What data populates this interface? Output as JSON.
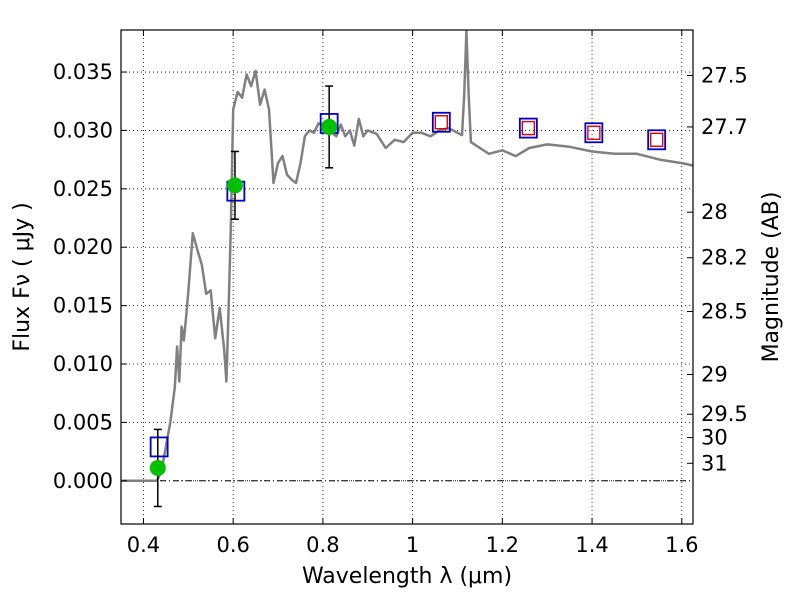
{
  "chart_data": {
    "type": "scatter",
    "xlabel": "Wavelength  λ (μm)",
    "ylabel": "Flux  Fν  ( μJy )",
    "y2label": "Magnitude (AB)",
    "xlim": [
      0.35,
      1.625
    ],
    "ylim": [
      -0.0037,
      0.0386
    ],
    "grid": true,
    "x_ticks": [
      {
        "value": 0.4,
        "label": "0.4"
      },
      {
        "value": 0.6,
        "label": "0.6"
      },
      {
        "value": 0.8,
        "label": "0.8"
      },
      {
        "value": 1.0,
        "label": "1"
      },
      {
        "value": 1.2,
        "label": "1.2"
      },
      {
        "value": 1.4,
        "label": "1.4"
      },
      {
        "value": 1.6,
        "label": "1.6"
      }
    ],
    "y_ticks": [
      {
        "value": 0.0,
        "label": "0.000"
      },
      {
        "value": 0.005,
        "label": "0.005"
      },
      {
        "value": 0.01,
        "label": "0.010"
      },
      {
        "value": 0.015,
        "label": "0.015"
      },
      {
        "value": 0.02,
        "label": "0.020"
      },
      {
        "value": 0.025,
        "label": "0.025"
      },
      {
        "value": 0.03,
        "label": "0.030"
      },
      {
        "value": 0.035,
        "label": "0.035"
      }
    ],
    "y2_ticks": [
      {
        "flux": 0.0347,
        "label": "27.5"
      },
      {
        "flux": 0.0303,
        "label": "27.7"
      },
      {
        "flux": 0.023,
        "label": "28"
      },
      {
        "flux": 0.0191,
        "label": "28.2"
      },
      {
        "flux": 0.0145,
        "label": "28.5"
      },
      {
        "flux": 0.0091,
        "label": "29"
      },
      {
        "flux": 0.0057,
        "label": "29.5"
      },
      {
        "flux": 0.0037,
        "label": "30"
      },
      {
        "flux": 0.0015,
        "label": "31"
      }
    ],
    "colors": {
      "model": "#808080",
      "observed": "#00c000",
      "box_outer": "#0000cc",
      "box_inner": "#dd0000",
      "errorbar": "#000000"
    },
    "model_spectrum": {
      "x": [
        0.35,
        0.43,
        0.44,
        0.46,
        0.47,
        0.475,
        0.48,
        0.485,
        0.49,
        0.495,
        0.5,
        0.51,
        0.52,
        0.53,
        0.54,
        0.55,
        0.56,
        0.57,
        0.58,
        0.585,
        0.59,
        0.595,
        0.6,
        0.61,
        0.62,
        0.63,
        0.64,
        0.65,
        0.66,
        0.67,
        0.68,
        0.69,
        0.7,
        0.71,
        0.72,
        0.73,
        0.74,
        0.75,
        0.76,
        0.77,
        0.78,
        0.79,
        0.8,
        0.81,
        0.82,
        0.83,
        0.84,
        0.85,
        0.86,
        0.87,
        0.88,
        0.89,
        0.9,
        0.92,
        0.94,
        0.96,
        0.98,
        1.0,
        1.02,
        1.04,
        1.06,
        1.08,
        1.1,
        1.11,
        1.115,
        1.12,
        1.125,
        1.13,
        1.15,
        1.17,
        1.2,
        1.23,
        1.26,
        1.3,
        1.35,
        1.4,
        1.45,
        1.5,
        1.55,
        1.6,
        1.625
      ],
      "y": [
        0.0,
        0.0,
        0.0008,
        0.005,
        0.008,
        0.0115,
        0.0085,
        0.0132,
        0.012,
        0.014,
        0.0162,
        0.0212,
        0.0198,
        0.0185,
        0.016,
        0.0163,
        0.0122,
        0.0148,
        0.0112,
        0.0085,
        0.015,
        0.022,
        0.0318,
        0.0333,
        0.0328,
        0.0348,
        0.0338,
        0.0351,
        0.0322,
        0.0335,
        0.0318,
        0.0255,
        0.0272,
        0.0278,
        0.0262,
        0.0258,
        0.0255,
        0.0272,
        0.0295,
        0.03,
        0.0298,
        0.0306,
        0.0305,
        0.0303,
        0.0298,
        0.0295,
        0.0305,
        0.0295,
        0.03,
        0.0287,
        0.031,
        0.0295,
        0.03,
        0.0297,
        0.0285,
        0.0292,
        0.029,
        0.0298,
        0.0298,
        0.0295,
        0.03,
        0.0302,
        0.0298,
        0.0296,
        0.033,
        0.0385,
        0.033,
        0.029,
        0.0285,
        0.028,
        0.0283,
        0.0278,
        0.0285,
        0.0288,
        0.0286,
        0.0282,
        0.028,
        0.028,
        0.0275,
        0.0272,
        0.027
      ]
    },
    "observed_points": [
      {
        "x": 0.432,
        "y": 0.0011,
        "yerr": 0.0033
      },
      {
        "x": 0.604,
        "y": 0.0253,
        "yerr": 0.0029
      },
      {
        "x": 0.814,
        "y": 0.0303,
        "yerr": 0.0035
      }
    ],
    "model_boxes": [
      {
        "x": 0.435,
        "y": 0.0029,
        "inner": false
      },
      {
        "x": 0.606,
        "y": 0.0248,
        "inner": false
      },
      {
        "x": 0.814,
        "y": 0.0306,
        "inner": false
      },
      {
        "x": 1.064,
        "y": 0.0307,
        "inner": true
      },
      {
        "x": 1.258,
        "y": 0.0302,
        "inner": true
      },
      {
        "x": 1.404,
        "y": 0.0298,
        "inner": true
      },
      {
        "x": 1.544,
        "y": 0.0292,
        "inner": true
      }
    ]
  }
}
